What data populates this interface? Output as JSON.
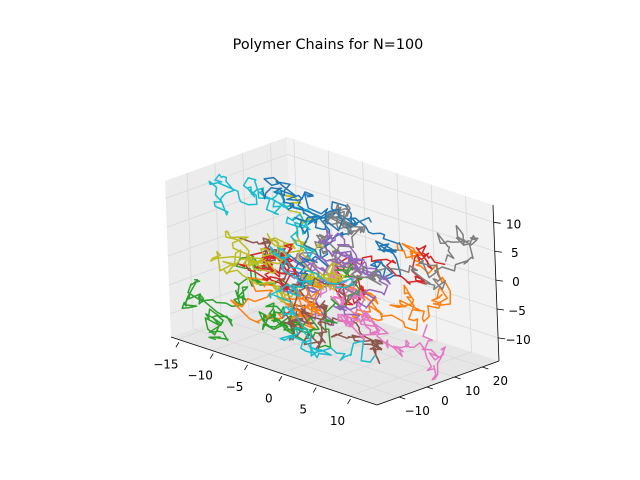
{
  "chart_data": {
    "type": "line",
    "projection": "3d",
    "title": "Polymer Chains for N=100",
    "xlabel": "",
    "ylabel": "",
    "zlabel": "",
    "xlim": [
      -16,
      14
    ],
    "ylim": [
      -18,
      26
    ],
    "zlim": [
      -14,
      13
    ],
    "x_ticks": [
      -15,
      -10,
      -5,
      0,
      5,
      10
    ],
    "x_tick_labels": [
      "−15",
      "−10",
      "−5",
      "0",
      "5",
      "10"
    ],
    "y_ticks": [
      -10,
      0,
      10,
      20
    ],
    "y_tick_labels": [
      "−10",
      "0",
      "10",
      "20"
    ],
    "z_ticks": [
      -10,
      -5,
      0,
      5,
      10
    ],
    "z_tick_labels": [
      "−10",
      "−5",
      "0",
      "5",
      "10"
    ],
    "grid": true,
    "n_chains": 20,
    "steps_per_chain": 100,
    "seed": 7,
    "series_colors": [
      "#1f77b4",
      "#ff7f0e",
      "#2ca02c",
      "#d62728",
      "#9467bd",
      "#8c564b",
      "#e377c2",
      "#7f7f7f",
      "#bcbd22",
      "#17becf",
      "#1f77b4",
      "#ff7f0e",
      "#2ca02c",
      "#d62728",
      "#9467bd",
      "#8c564b",
      "#e377c2",
      "#7f7f7f",
      "#bcbd22",
      "#17becf"
    ],
    "pane_colors": {
      "left": "#ececec",
      "back": "#f2f2f2",
      "floor": "#e6e6e6"
    }
  }
}
